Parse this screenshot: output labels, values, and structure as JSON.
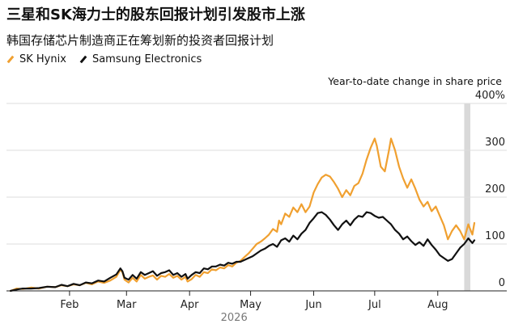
{
  "chart_data": {
    "type": "line",
    "title": "三星和SK海力士的股东回报计划引发股市上涨",
    "subtitle": "韩国存储芯片制造商正在筹划新的投资者回报计划",
    "ylabel": "Year-to-date change in share price",
    "ylim": [
      0,
      400
    ],
    "yticks": [
      "400%",
      "300",
      "200",
      "100",
      "0"
    ],
    "ytick_values": [
      400,
      300,
      200,
      100,
      0
    ],
    "x_tick_labels": [
      "Feb",
      "Mar",
      "Apr",
      "May",
      "Jun",
      "Jul",
      "Aug"
    ],
    "x_tick_days": [
      31,
      59,
      90,
      120,
      151,
      181,
      212
    ],
    "x_year_label": "2026",
    "xlim_days": [
      0,
      230
    ],
    "highlight_band_days": [
      225,
      228
    ],
    "grid": true,
    "legend_position": "top-left",
    "series": [
      {
        "name": "SK Hynix",
        "color": "#f0a030",
        "points": [
          [
            2,
            0
          ],
          [
            5,
            5
          ],
          [
            8,
            4
          ],
          [
            12,
            7
          ],
          [
            16,
            5
          ],
          [
            20,
            9
          ],
          [
            24,
            8
          ],
          [
            27,
            12
          ],
          [
            30,
            10
          ],
          [
            33,
            14
          ],
          [
            36,
            12
          ],
          [
            39,
            17
          ],
          [
            42,
            14
          ],
          [
            45,
            20
          ],
          [
            48,
            17
          ],
          [
            51,
            22
          ],
          [
            54,
            30
          ],
          [
            56,
            45
          ],
          [
            57,
            40
          ],
          [
            58,
            24
          ],
          [
            60,
            18
          ],
          [
            62,
            28
          ],
          [
            64,
            20
          ],
          [
            66,
            34
          ],
          [
            68,
            26
          ],
          [
            70,
            30
          ],
          [
            72,
            33
          ],
          [
            74,
            24
          ],
          [
            76,
            32
          ],
          [
            78,
            30
          ],
          [
            80,
            36
          ],
          [
            82,
            28
          ],
          [
            84,
            32
          ],
          [
            86,
            24
          ],
          [
            88,
            30
          ],
          [
            89,
            20
          ],
          [
            91,
            25
          ],
          [
            93,
            34
          ],
          [
            95,
            30
          ],
          [
            97,
            40
          ],
          [
            99,
            38
          ],
          [
            101,
            46
          ],
          [
            103,
            44
          ],
          [
            105,
            50
          ],
          [
            107,
            48
          ],
          [
            109,
            55
          ],
          [
            111,
            52
          ],
          [
            113,
            60
          ],
          [
            115,
            64
          ],
          [
            117,
            72
          ],
          [
            119,
            80
          ],
          [
            121,
            90
          ],
          [
            123,
            100
          ],
          [
            125,
            105
          ],
          [
            127,
            112
          ],
          [
            129,
            120
          ],
          [
            131,
            132
          ],
          [
            133,
            126
          ],
          [
            134,
            150
          ],
          [
            135,
            142
          ],
          [
            137,
            165
          ],
          [
            139,
            158
          ],
          [
            141,
            178
          ],
          [
            143,
            168
          ],
          [
            145,
            185
          ],
          [
            147,
            168
          ],
          [
            149,
            180
          ],
          [
            151,
            210
          ],
          [
            153,
            228
          ],
          [
            155,
            242
          ],
          [
            157,
            248
          ],
          [
            159,
            244
          ],
          [
            161,
            232
          ],
          [
            163,
            218
          ],
          [
            165,
            200
          ],
          [
            167,
            215
          ],
          [
            169,
            204
          ],
          [
            171,
            224
          ],
          [
            173,
            230
          ],
          [
            175,
            250
          ],
          [
            177,
            280
          ],
          [
            179,
            305
          ],
          [
            181,
            325
          ],
          [
            182,
            310
          ],
          [
            184,
            265
          ],
          [
            186,
            255
          ],
          [
            188,
            300
          ],
          [
            189,
            325
          ],
          [
            191,
            300
          ],
          [
            193,
            265
          ],
          [
            195,
            240
          ],
          [
            197,
            220
          ],
          [
            199,
            238
          ],
          [
            201,
            218
          ],
          [
            203,
            195
          ],
          [
            205,
            180
          ],
          [
            207,
            190
          ],
          [
            209,
            170
          ],
          [
            211,
            180
          ],
          [
            213,
            160
          ],
          [
            215,
            140
          ],
          [
            217,
            110
          ],
          [
            219,
            128
          ],
          [
            221,
            140
          ],
          [
            223,
            128
          ],
          [
            225,
            110
          ],
          [
            227,
            142
          ],
          [
            229,
            120
          ],
          [
            230,
            145
          ]
        ]
      },
      {
        "name": "Samsung Electronics",
        "color": "#111111",
        "points": [
          [
            2,
            0
          ],
          [
            5,
            3
          ],
          [
            8,
            5
          ],
          [
            12,
            5
          ],
          [
            16,
            6
          ],
          [
            20,
            9
          ],
          [
            24,
            8
          ],
          [
            27,
            13
          ],
          [
            30,
            10
          ],
          [
            33,
            15
          ],
          [
            36,
            12
          ],
          [
            39,
            18
          ],
          [
            42,
            16
          ],
          [
            45,
            22
          ],
          [
            48,
            20
          ],
          [
            51,
            28
          ],
          [
            54,
            35
          ],
          [
            56,
            48
          ],
          [
            57,
            42
          ],
          [
            58,
            28
          ],
          [
            60,
            24
          ],
          [
            62,
            34
          ],
          [
            64,
            26
          ],
          [
            66,
            40
          ],
          [
            68,
            34
          ],
          [
            70,
            38
          ],
          [
            72,
            42
          ],
          [
            74,
            32
          ],
          [
            76,
            38
          ],
          [
            78,
            40
          ],
          [
            80,
            44
          ],
          [
            82,
            34
          ],
          [
            84,
            38
          ],
          [
            86,
            30
          ],
          [
            88,
            36
          ],
          [
            89,
            26
          ],
          [
            91,
            34
          ],
          [
            93,
            40
          ],
          [
            95,
            38
          ],
          [
            97,
            48
          ],
          [
            99,
            46
          ],
          [
            101,
            52
          ],
          [
            103,
            52
          ],
          [
            105,
            56
          ],
          [
            107,
            54
          ],
          [
            109,
            60
          ],
          [
            111,
            58
          ],
          [
            113,
            62
          ],
          [
            115,
            62
          ],
          [
            117,
            66
          ],
          [
            119,
            70
          ],
          [
            121,
            74
          ],
          [
            123,
            80
          ],
          [
            125,
            86
          ],
          [
            127,
            90
          ],
          [
            129,
            96
          ],
          [
            131,
            100
          ],
          [
            133,
            94
          ],
          [
            135,
            108
          ],
          [
            137,
            112
          ],
          [
            139,
            105
          ],
          [
            141,
            118
          ],
          [
            143,
            110
          ],
          [
            145,
            122
          ],
          [
            147,
            130
          ],
          [
            149,
            145
          ],
          [
            151,
            155
          ],
          [
            153,
            166
          ],
          [
            155,
            168
          ],
          [
            157,
            162
          ],
          [
            159,
            152
          ],
          [
            161,
            140
          ],
          [
            163,
            130
          ],
          [
            165,
            142
          ],
          [
            167,
            150
          ],
          [
            169,
            140
          ],
          [
            171,
            152
          ],
          [
            173,
            160
          ],
          [
            175,
            158
          ],
          [
            177,
            168
          ],
          [
            179,
            166
          ],
          [
            181,
            160
          ],
          [
            183,
            156
          ],
          [
            185,
            158
          ],
          [
            187,
            150
          ],
          [
            189,
            142
          ],
          [
            191,
            130
          ],
          [
            193,
            122
          ],
          [
            195,
            110
          ],
          [
            197,
            116
          ],
          [
            199,
            106
          ],
          [
            201,
            98
          ],
          [
            203,
            104
          ],
          [
            205,
            96
          ],
          [
            207,
            110
          ],
          [
            209,
            98
          ],
          [
            211,
            88
          ],
          [
            213,
            76
          ],
          [
            215,
            70
          ],
          [
            217,
            64
          ],
          [
            219,
            68
          ],
          [
            221,
            80
          ],
          [
            223,
            92
          ],
          [
            225,
            100
          ],
          [
            227,
            112
          ],
          [
            229,
            102
          ],
          [
            230,
            108
          ]
        ]
      }
    ]
  }
}
